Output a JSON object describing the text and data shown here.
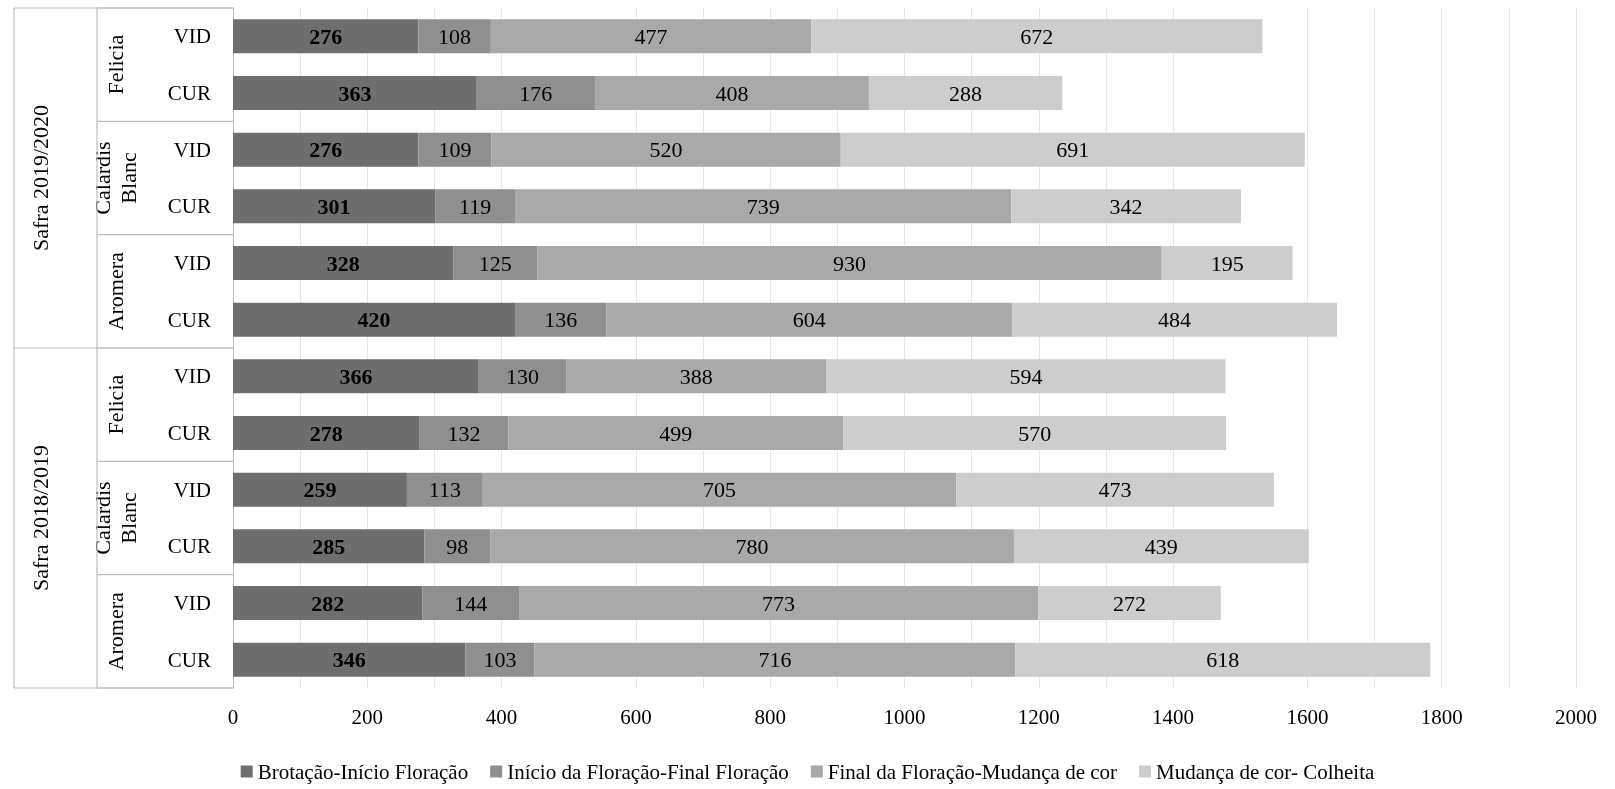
{
  "chart_data": {
    "type": "bar",
    "orientation": "horizontal",
    "stacked": true,
    "data_labels": true,
    "categories": [
      "VID",
      "CUR",
      "VID",
      "CUR",
      "VID",
      "CUR",
      "VID",
      "CUR",
      "VID",
      "CUR",
      "VID",
      "CUR"
    ],
    "series": [
      {
        "name": "Brotação-Início Floração",
        "color": "#6e6e6e",
        "values": [
          276,
          363,
          276,
          301,
          328,
          420,
          366,
          278,
          259,
          285,
          282,
          346
        ]
      },
      {
        "name": "Início da Floração-Final Floração",
        "color": "#8f8f8f",
        "values": [
          108,
          176,
          109,
          119,
          125,
          136,
          130,
          132,
          113,
          98,
          144,
          103
        ]
      },
      {
        "name": "Final da Floração-Mudança de cor",
        "color": "#a9a9a9",
        "values": [
          477,
          408,
          520,
          739,
          930,
          604,
          388,
          499,
          705,
          780,
          773,
          716
        ]
      },
      {
        "name": "Mudança de cor- Colheita",
        "color": "#cdcdcd",
        "values": [
          672,
          288,
          691,
          342,
          195,
          484,
          594,
          570,
          473,
          439,
          272,
          618
        ]
      }
    ],
    "xlim": [
      0,
      2000
    ],
    "xticks": [
      0,
      200,
      400,
      600,
      800,
      1000,
      1200,
      1400,
      1600,
      1800,
      2000
    ],
    "grid": "x",
    "legend": "bottom",
    "annotations": [
      "Felicia",
      "Calardis Blanc",
      "Aromera",
      "Felicia",
      "Calardis Blanc",
      "Aromera",
      "Safra 2019/2020",
      "Safra 2018/2019"
    ]
  }
}
